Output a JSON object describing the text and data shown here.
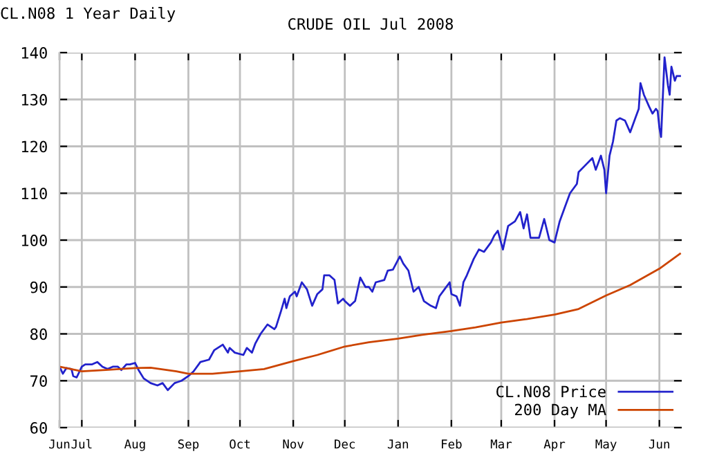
{
  "chart_data": {
    "type": "line",
    "title": "CRUDE OIL Jul 2008",
    "subtitle": "CL.N08 1 Year Daily",
    "xlim": [
      "2007-06-18",
      "2008-06-14"
    ],
    "xticks": [
      {
        "value": "2007-06-18",
        "label": "Jun"
      },
      {
        "value": "2007-07-01",
        "label": "Jul"
      },
      {
        "value": "2007-08-01",
        "label": "Aug"
      },
      {
        "value": "2007-09-01",
        "label": "Sep"
      },
      {
        "value": "2007-10-01",
        "label": "Oct"
      },
      {
        "value": "2007-11-01",
        "label": "Nov"
      },
      {
        "value": "2007-12-01",
        "label": "Dec"
      },
      {
        "value": "2008-01-01",
        "label": "Jan"
      },
      {
        "value": "2008-02-01",
        "label": "Feb"
      },
      {
        "value": "2008-03-01",
        "label": "Mar"
      },
      {
        "value": "2008-04-01",
        "label": "Apr"
      },
      {
        "value": "2008-05-01",
        "label": "May"
      },
      {
        "value": "2008-06-01",
        "label": "Jun"
      }
    ],
    "ylim": [
      60,
      140
    ],
    "yticks": [
      60,
      70,
      80,
      90,
      100,
      110,
      120,
      130,
      140
    ],
    "grid": true,
    "legend": "bottom right",
    "line_style": "solid",
    "marker": "none",
    "series": [
      {
        "name": "CL.N08 Price",
        "color": "#2222cc",
        "x": [
          "2007-06-18",
          "2007-06-20",
          "2007-06-22",
          "2007-06-25",
          "2007-06-26",
          "2007-06-28",
          "2007-07-01",
          "2007-07-03",
          "2007-07-07",
          "2007-07-10",
          "2007-07-13",
          "2007-07-16",
          "2007-07-19",
          "2007-07-22",
          "2007-07-24",
          "2007-07-27",
          "2007-07-29",
          "2007-08-01",
          "2007-08-03",
          "2007-08-06",
          "2007-08-10",
          "2007-08-14",
          "2007-08-17",
          "2007-08-20",
          "2007-08-24",
          "2007-08-28",
          "2007-09-01",
          "2007-09-04",
          "2007-09-08",
          "2007-09-13",
          "2007-09-16",
          "2007-09-21",
          "2007-09-24",
          "2007-09-25",
          "2007-09-28",
          "2007-10-03",
          "2007-10-05",
          "2007-10-08",
          "2007-10-10",
          "2007-10-13",
          "2007-10-17",
          "2007-10-21",
          "2007-10-22",
          "2007-10-25",
          "2007-10-27",
          "2007-10-28",
          "2007-10-30",
          "2007-11-02",
          "2007-11-03",
          "2007-11-06",
          "2007-11-09",
          "2007-11-12",
          "2007-11-15",
          "2007-11-18",
          "2007-11-19",
          "2007-11-22",
          "2007-11-25",
          "2007-11-27",
          "2007-11-30",
          "2007-12-01",
          "2007-12-04",
          "2007-12-07",
          "2007-12-10",
          "2007-12-13",
          "2007-12-15",
          "2007-12-17",
          "2007-12-19",
          "2007-12-24",
          "2007-12-26",
          "2007-12-29",
          "2008-01-02",
          "2008-01-04",
          "2008-01-07",
          "2008-01-10",
          "2008-01-13",
          "2008-01-16",
          "2008-01-20",
          "2008-01-23",
          "2008-01-25",
          "2008-01-28",
          "2008-01-31",
          "2008-02-01",
          "2008-02-04",
          "2008-02-06",
          "2008-02-08",
          "2008-02-10",
          "2008-02-14",
          "2008-02-17",
          "2008-02-20",
          "2008-02-24",
          "2008-02-26",
          "2008-02-28",
          "2008-03-02",
          "2008-03-05",
          "2008-03-09",
          "2008-03-12",
          "2008-03-14",
          "2008-03-16",
          "2008-03-18",
          "2008-03-23",
          "2008-03-26",
          "2008-03-29",
          "2008-04-01",
          "2008-04-04",
          "2008-04-07",
          "2008-04-10",
          "2008-04-14",
          "2008-04-15",
          "2008-04-19",
          "2008-04-23",
          "2008-04-25",
          "2008-04-28",
          "2008-04-30",
          "2008-05-01",
          "2008-05-03",
          "2008-05-05",
          "2008-05-07",
          "2008-05-09",
          "2008-05-12",
          "2008-05-15",
          "2008-05-18",
          "2008-05-20",
          "2008-05-21",
          "2008-05-23",
          "2008-05-26",
          "2008-05-28",
          "2008-05-30",
          "2008-05-31",
          "2008-06-01",
          "2008-06-02",
          "2008-06-03",
          "2008-06-04",
          "2008-06-05",
          "2008-06-06",
          "2008-06-07",
          "2008-06-08",
          "2008-06-10",
          "2008-06-11",
          "2008-06-13"
        ],
        "values": [
          73,
          71.5,
          72.7,
          72.5,
          71,
          70.7,
          73,
          73.5,
          73.5,
          74,
          73,
          72.5,
          73,
          73,
          72.3,
          73.5,
          73.5,
          73.8,
          72.3,
          70.5,
          69.5,
          69,
          69.5,
          68,
          69.5,
          70,
          71,
          72,
          74,
          74.5,
          76.5,
          77.7,
          76,
          77,
          76,
          75.5,
          77,
          76,
          78,
          80,
          82,
          81,
          81.5,
          85,
          87.5,
          85.5,
          88,
          89,
          88,
          91,
          89.5,
          86,
          88.5,
          89.5,
          92.5,
          92.5,
          91.5,
          86.5,
          87.5,
          87,
          86,
          87,
          92,
          90,
          90,
          89,
          91,
          91.5,
          93.5,
          93.7,
          96.5,
          95,
          93.5,
          89,
          90,
          87,
          86,
          85.5,
          88,
          89.5,
          91,
          88.5,
          88,
          86,
          91,
          92.5,
          96,
          98,
          97.5,
          99.5,
          101,
          102,
          98,
          103,
          104,
          106,
          102.5,
          105.5,
          100.5,
          100.5,
          104.5,
          100,
          99.5,
          104,
          107,
          110,
          112,
          114.5,
          116,
          117.5,
          115,
          118,
          115,
          110,
          118,
          121,
          125.5,
          126,
          125.5,
          123,
          126,
          128,
          133.5,
          131,
          128.5,
          127,
          128,
          127.5,
          124,
          122,
          130.5,
          139,
          136,
          133,
          131,
          137,
          134,
          135,
          135
        ]
      },
      {
        "name": "200 Day MA",
        "color": "#cc4400",
        "x": [
          "2007-06-18",
          "2007-07-01",
          "2007-07-15",
          "2007-08-01",
          "2007-08-10",
          "2007-08-25",
          "2007-09-01",
          "2007-09-15",
          "2007-10-01",
          "2007-10-15",
          "2007-11-01",
          "2007-11-15",
          "2007-12-01",
          "2007-12-15",
          "2008-01-01",
          "2008-01-15",
          "2008-02-01",
          "2008-02-15",
          "2008-03-01",
          "2008-03-15",
          "2008-04-01",
          "2008-04-15",
          "2008-05-01",
          "2008-05-15",
          "2008-06-01",
          "2008-06-13"
        ],
        "values": [
          73,
          72,
          72.3,
          72.7,
          72.8,
          72,
          71.5,
          71.5,
          72,
          72.5,
          74.2,
          75.5,
          77.3,
          78.2,
          79,
          79.8,
          80.6,
          81.4,
          82.4,
          83.1,
          84.1,
          85.3,
          88.2,
          90.4,
          93.9,
          97.1
        ]
      }
    ]
  }
}
